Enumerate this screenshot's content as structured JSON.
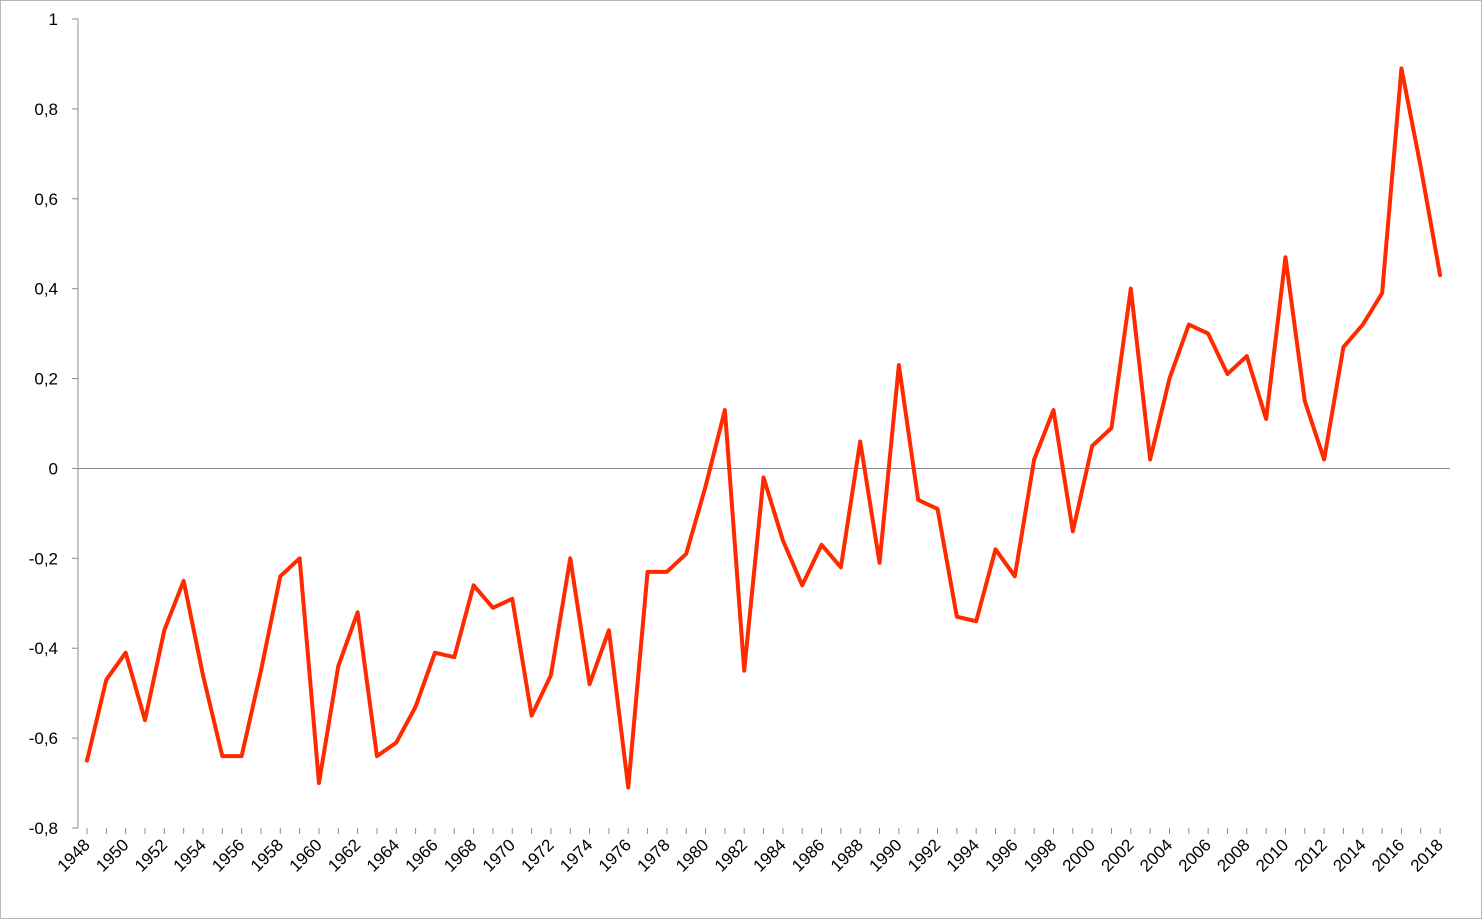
{
  "chart_data": {
    "type": "line",
    "title": "",
    "xlabel": "",
    "ylabel": "",
    "ylim": [
      -0.8,
      1
    ],
    "y_ticks": [
      1,
      0.8,
      0.6,
      0.4,
      0.2,
      0,
      -0.2,
      -0.4,
      -0.6,
      -0.8
    ],
    "y_tick_labels": [
      "1",
      "0,8",
      "0,6",
      "0,4",
      "0,2",
      "0",
      "-0,2",
      "-0,4",
      "-0,6",
      "-0,8"
    ],
    "x_tick_labels": [
      "1948",
      "1950",
      "1952",
      "1954",
      "1956",
      "1958",
      "1960",
      "1962",
      "1964",
      "1966",
      "1968",
      "1970",
      "1972",
      "1974",
      "1976",
      "1978",
      "1980",
      "1982",
      "1984",
      "1986",
      "1988",
      "1990",
      "1992",
      "1994",
      "1996",
      "1998",
      "2000",
      "2002",
      "2004",
      "2006",
      "2008",
      "2010",
      "2012",
      "2014",
      "2016",
      "2018"
    ],
    "grid": false,
    "line_color": "#ff2a00",
    "x": [
      1948,
      1949,
      1950,
      1951,
      1952,
      1953,
      1954,
      1955,
      1956,
      1957,
      1958,
      1959,
      1960,
      1961,
      1962,
      1963,
      1964,
      1965,
      1966,
      1967,
      1968,
      1969,
      1970,
      1971,
      1972,
      1973,
      1974,
      1975,
      1976,
      1977,
      1978,
      1979,
      1980,
      1981,
      1982,
      1983,
      1984,
      1985,
      1986,
      1987,
      1988,
      1989,
      1990,
      1991,
      1992,
      1993,
      1994,
      1995,
      1996,
      1997,
      1998,
      1999,
      2000,
      2001,
      2002,
      2003,
      2004,
      2005,
      2006,
      2007,
      2008,
      2009,
      2010,
      2011,
      2012,
      2013,
      2014,
      2015,
      2016,
      2017,
      2018
    ],
    "series": [
      {
        "values": [
          -0.65,
          -0.47,
          -0.41,
          -0.56,
          -0.36,
          -0.25,
          -0.46,
          -0.64,
          -0.64,
          -0.45,
          -0.24,
          -0.2,
          -0.7,
          -0.44,
          -0.32,
          -0.64,
          -0.61,
          -0.53,
          -0.41,
          -0.42,
          -0.26,
          -0.31,
          -0.29,
          -0.55,
          -0.46,
          -0.2,
          -0.48,
          -0.36,
          -0.71,
          -0.23,
          -0.23,
          -0.19,
          -0.04,
          0.13,
          -0.45,
          -0.02,
          -0.16,
          -0.26,
          -0.17,
          -0.22,
          0.06,
          -0.21,
          0.23,
          -0.07,
          -0.09,
          -0.33,
          -0.34,
          -0.18,
          -0.24,
          0.02,
          0.13,
          -0.14,
          0.05,
          0.09,
          0.4,
          0.02,
          0.2,
          0.32,
          0.3,
          0.21,
          0.25,
          0.11,
          0.47,
          0.15,
          0.02,
          0.27,
          0.32,
          0.39,
          0.89,
          0.67,
          0.43
        ]
      }
    ]
  }
}
